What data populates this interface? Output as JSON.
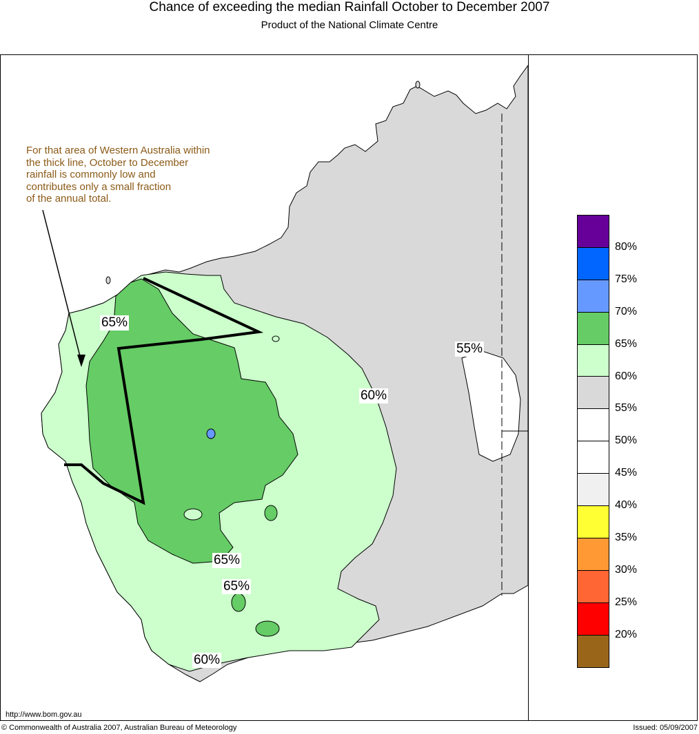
{
  "title": "Chance of exceeding the median Rainfall October to December 2007",
  "subtitle": "Product of the National Climate Centre",
  "note": "For that area of Western Australia within\nthe thick line, October to December\nrainfall is commonly low and\ncontributes only a small fraction\nof the annual total.",
  "contour_labels": [
    "65%",
    "60%",
    "55%",
    "65%",
    "65%",
    "60%"
  ],
  "legend": {
    "colors": [
      "#660099",
      "#0066ff",
      "#6699ff",
      "#66cc66",
      "#ccffcc",
      "#d9d9d9",
      "#ffffff",
      "#ffffff",
      "#f0f0f0",
      "#ffff33",
      "#ff9933",
      "#ff6633",
      "#ff0000",
      "#996619"
    ],
    "labels": [
      "80%",
      "75%",
      "70%",
      "65%",
      "60%",
      "55%",
      "50%",
      "45%",
      "40%",
      "35%",
      "30%",
      "25%",
      "20%"
    ]
  },
  "colors": {
    "land_grey": "#d9d9d9",
    "light_green": "#ccffcc",
    "green": "#66cc66",
    "blue": "#6699ff",
    "note_text": "#8b5a17"
  },
  "footer": {
    "url": "http://www.bom.gov.au",
    "copyright": "© Commonwealth of Australia 2007, Australian Bureau of Meteorology",
    "issued": "Issued: 05/09/2007"
  }
}
